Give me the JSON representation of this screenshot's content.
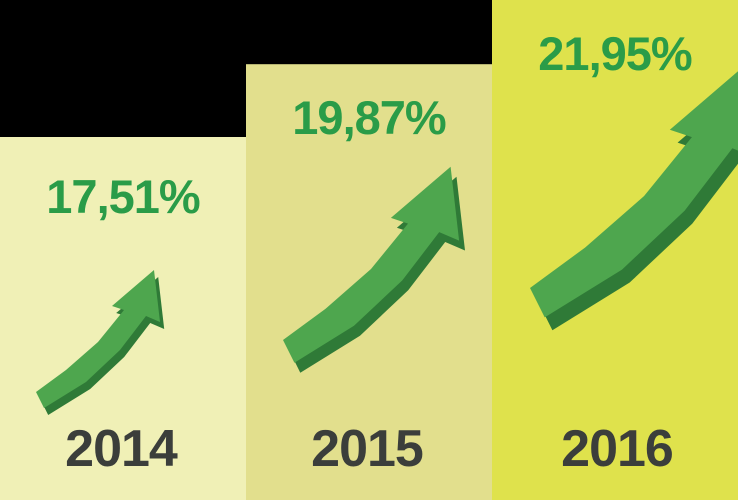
{
  "chart_data": {
    "type": "bar",
    "title": "",
    "xlabel": "",
    "ylabel": "",
    "categories": [
      "2014",
      "2015",
      "2016"
    ],
    "values": [
      17.51,
      19.87,
      21.95
    ],
    "value_labels": [
      "17,51%",
      "19,87%",
      "21,95%"
    ],
    "unit": "%",
    "grid": false,
    "legend": "none"
  },
  "colors": {
    "background": "#000000",
    "bars": [
      "#f0f0b6",
      "#e2df8d",
      "#dfe24c"
    ],
    "value_text": "#2a9c48",
    "year_text": "#3b3e3b",
    "arrow_face": "#4ea64e",
    "arrow_side": "#2f7a37",
    "arrow_shadow": "#1d5a26"
  },
  "icons": {
    "growth_arrow": "arrow-up-right-icon"
  }
}
